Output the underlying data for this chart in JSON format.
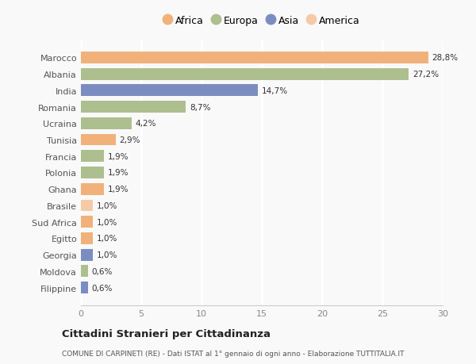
{
  "countries": [
    "Marocco",
    "Albania",
    "India",
    "Romania",
    "Ucraina",
    "Tunisia",
    "Francia",
    "Polonia",
    "Ghana",
    "Brasile",
    "Sud Africa",
    "Egitto",
    "Georgia",
    "Moldova",
    "Filippine"
  ],
  "values": [
    28.8,
    27.2,
    14.7,
    8.7,
    4.2,
    2.9,
    1.9,
    1.9,
    1.9,
    1.0,
    1.0,
    1.0,
    1.0,
    0.6,
    0.6
  ],
  "labels": [
    "28,8%",
    "27,2%",
    "14,7%",
    "8,7%",
    "4,2%",
    "2,9%",
    "1,9%",
    "1,9%",
    "1,9%",
    "1,0%",
    "1,0%",
    "1,0%",
    "1,0%",
    "0,6%",
    "0,6%"
  ],
  "colors": [
    "#F0B27A",
    "#ADBF8E",
    "#7B8DC0",
    "#ADBF8E",
    "#ADBF8E",
    "#F0B27A",
    "#ADBF8E",
    "#ADBF8E",
    "#F0B27A",
    "#F5CBA7",
    "#F0B27A",
    "#F0B27A",
    "#7B8DC0",
    "#ADBF8E",
    "#7B8DC0"
  ],
  "legend_labels": [
    "Africa",
    "Europa",
    "Asia",
    "America"
  ],
  "legend_colors": [
    "#F0B27A",
    "#ADBF8E",
    "#7B8DC0",
    "#F5CBA7"
  ],
  "title": "Cittadini Stranieri per Cittadinanza",
  "subtitle": "COMUNE DI CARPINETI (RE) - Dati ISTAT al 1° gennaio di ogni anno - Elaborazione TUTTITALIA.IT",
  "xlim": [
    0,
    30
  ],
  "xticks": [
    0,
    5,
    10,
    15,
    20,
    25,
    30
  ],
  "background_color": "#f9f9f9",
  "grid_color": "#ffffff",
  "bar_height": 0.72
}
